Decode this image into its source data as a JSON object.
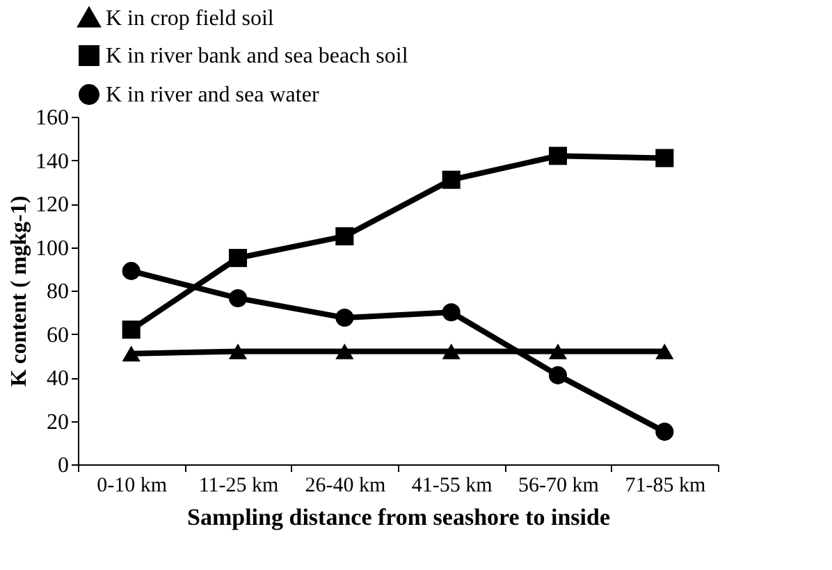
{
  "chart_data": {
    "type": "line",
    "xlabel": "Sampling distance from seashore to inside",
    "ylabel": "K content ( mgkg-1)",
    "categories": [
      "0-10 km",
      "11-25 km",
      "26-40 km",
      "41-55 km",
      "56-70 km",
      "71-85 km"
    ],
    "series": [
      {
        "name": "K in crop field soil",
        "color": "#000000",
        "marker": "triangle",
        "values": [
          51,
          52,
          52,
          52,
          52,
          52
        ]
      },
      {
        "name": "K in river bank  and sea beach soil",
        "color": "#000000",
        "marker": "square",
        "values": [
          62,
          95,
          105,
          131,
          142,
          141
        ]
      },
      {
        "name": "K in river and sea water",
        "color": "#000000",
        "marker": "circle",
        "values": [
          89,
          76.5,
          67.5,
          70,
          41,
          15
        ]
      }
    ],
    "ylim": [
      0,
      160
    ],
    "yticks": [
      0,
      20,
      40,
      60,
      80,
      100,
      120,
      140,
      160
    ],
    "grid": false,
    "legend": "top left",
    "line_style": "solid"
  }
}
